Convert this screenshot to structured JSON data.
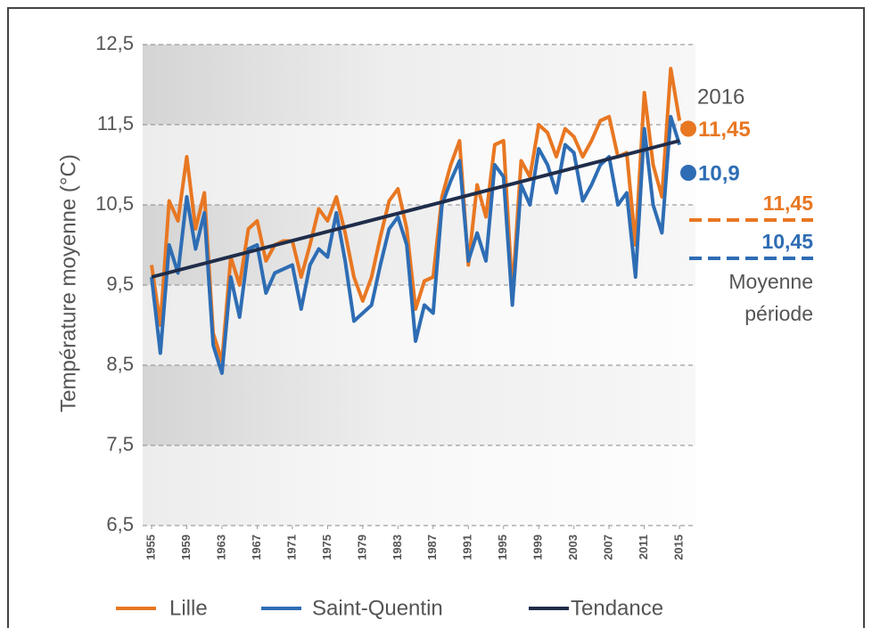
{
  "chart_data": {
    "type": "line",
    "y_label": "Température moyenne (°C)",
    "x": [
      1955,
      1956,
      1957,
      1958,
      1959,
      1960,
      1961,
      1962,
      1963,
      1964,
      1965,
      1966,
      1967,
      1968,
      1969,
      1970,
      1971,
      1972,
      1973,
      1974,
      1975,
      1976,
      1977,
      1978,
      1979,
      1980,
      1981,
      1982,
      1983,
      1984,
      1985,
      1986,
      1987,
      1988,
      1989,
      1990,
      1991,
      1992,
      1993,
      1994,
      1995,
      1996,
      1997,
      1998,
      1999,
      2000,
      2001,
      2002,
      2003,
      2004,
      2005,
      2006,
      2007,
      2008,
      2009,
      2010,
      2011,
      2012,
      2013,
      2014,
      2015
    ],
    "series": [
      {
        "name": "Lille",
        "color": "#e87722",
        "values": [
          9.75,
          9.0,
          10.55,
          10.3,
          11.1,
          10.2,
          10.65,
          8.9,
          8.55,
          9.85,
          9.5,
          10.2,
          10.3,
          9.8,
          10.0,
          10.05,
          10.05,
          9.6,
          10.0,
          10.45,
          10.3,
          10.6,
          10.15,
          9.6,
          9.3,
          9.6,
          10.1,
          10.55,
          10.7,
          10.2,
          9.2,
          9.55,
          9.6,
          10.6,
          11.0,
          11.3,
          9.75,
          10.75,
          10.35,
          11.25,
          11.3,
          9.4,
          11.05,
          10.85,
          11.5,
          11.4,
          11.1,
          11.45,
          11.35,
          11.1,
          11.3,
          11.55,
          11.6,
          11.1,
          11.15,
          10.0,
          11.9,
          11.0,
          10.6,
          12.2,
          11.55
        ]
      },
      {
        "name": "Saint-Quentin",
        "color": "#2e6db4",
        "values": [
          9.6,
          8.65,
          10.0,
          9.65,
          10.6,
          9.95,
          10.4,
          8.75,
          8.4,
          9.6,
          9.1,
          9.95,
          10.0,
          9.4,
          9.65,
          9.7,
          9.75,
          9.2,
          9.75,
          9.95,
          9.85,
          10.4,
          9.8,
          9.05,
          9.15,
          9.25,
          9.75,
          10.2,
          10.35,
          10.0,
          8.8,
          9.25,
          9.15,
          10.5,
          10.8,
          11.05,
          9.8,
          10.15,
          9.8,
          11.0,
          10.85,
          9.25,
          10.75,
          10.5,
          11.2,
          11.0,
          10.65,
          11.25,
          11.15,
          10.55,
          10.75,
          11.0,
          11.1,
          10.5,
          10.65,
          9.6,
          11.45,
          10.5,
          10.15,
          11.6,
          11.25
        ]
      }
    ],
    "trend": {
      "name": "Tendance",
      "color": "#1f2d4a",
      "x": [
        1955,
        2015
      ],
      "values": [
        9.6,
        11.3
      ]
    },
    "last_year": {
      "x": 2016,
      "values": [
        11.45,
        10.9
      ],
      "value_labels": [
        "11,45",
        "10,9"
      ]
    },
    "period_means": {
      "labels": [
        "11,45",
        "10,45"
      ],
      "caption": [
        "Moyenne",
        "période"
      ]
    },
    "xlim": [
      1955,
      2016
    ],
    "xticks": [
      1955,
      1959,
      1963,
      1967,
      1971,
      1975,
      1979,
      1983,
      1987,
      1991,
      1995,
      1999,
      2003,
      2007,
      2011,
      2015
    ],
    "ylim": [
      6.5,
      12.5
    ],
    "yticks": [
      {
        "value": 6.5,
        "label": "6,5"
      },
      {
        "value": 7.5,
        "label": "7,5"
      },
      {
        "value": 8.5,
        "label": "8,5"
      },
      {
        "value": 9.5,
        "label": "9,5"
      },
      {
        "value": 10.5,
        "label": "10,5"
      },
      {
        "value": 11.5,
        "label": "11,5"
      },
      {
        "value": 12.5,
        "label": "12,5"
      }
    ],
    "grid": true,
    "legend": "bottom"
  }
}
